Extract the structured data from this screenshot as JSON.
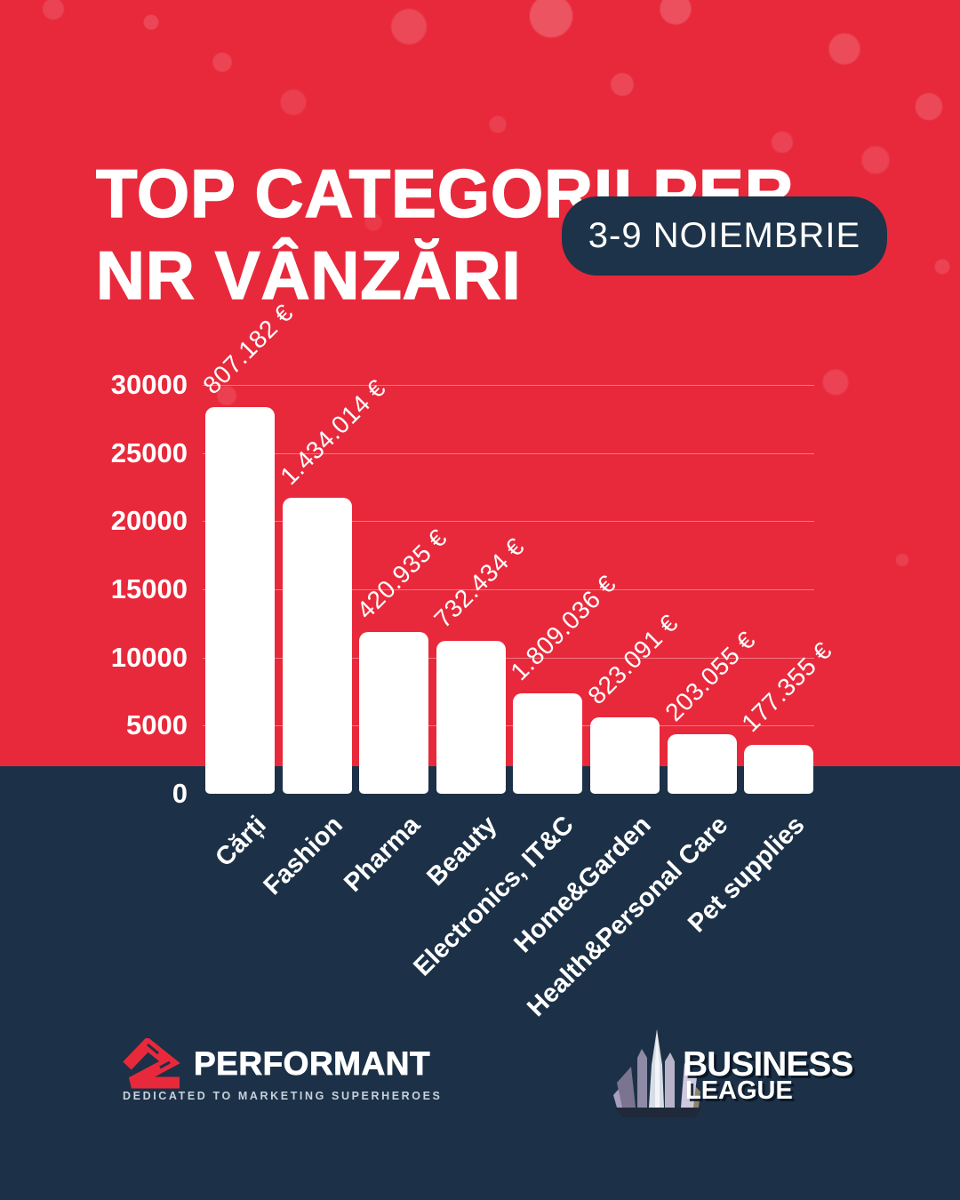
{
  "title": {
    "line1": "TOP CATEGORII PER",
    "line2": "NR VÂNZĂRI"
  },
  "badge": {
    "label": "3-9 NOIEMBRIE"
  },
  "chart_data": {
    "type": "bar",
    "title": "Top categorii per nr vânzări, 3-9 Noiembrie",
    "categories": [
      "Cărți",
      "Fashion",
      "Pharma",
      "Beauty",
      "Electronics, IT&C",
      "Home&Garden",
      "Health&Personal Care",
      "Pet supplies"
    ],
    "series": [
      {
        "name": "Nr vânzări",
        "values": [
          28400,
          21700,
          11900,
          11200,
          7400,
          5600,
          4400,
          3600
        ]
      }
    ],
    "bar_value_labels": [
      "807.182 €",
      "1.434.014 €",
      "420.935 €",
      "732.434 €",
      "1.809.036 €",
      "823.091 €",
      "203.055 €",
      "177.355 €"
    ],
    "xlabel": "",
    "ylabel": "",
    "ylim": [
      0,
      30000
    ],
    "yticks": [
      0,
      5000,
      10000,
      15000,
      20000,
      25000,
      30000
    ],
    "grid": true,
    "legend": false,
    "bar_color": "#FFFFFF",
    "value_label_rotation": -45,
    "category_label_rotation": -45
  },
  "footer": {
    "performant": {
      "brand": "PERFORMANT",
      "tagline": "DEDICATED TO MARKETING SUPERHEROES"
    },
    "business_league": {
      "line1": "BUSINESS",
      "line2": "LEAGUE"
    }
  },
  "colors": {
    "background_red": "#E8293B",
    "background_navy": "#1C3147",
    "badge_navy": "#1D3349",
    "bar": "#FFFFFF",
    "text": "#FFFFFF",
    "tagline": "#C7D1DB",
    "gridline": "rgba(255,255,255,0.38)"
  }
}
